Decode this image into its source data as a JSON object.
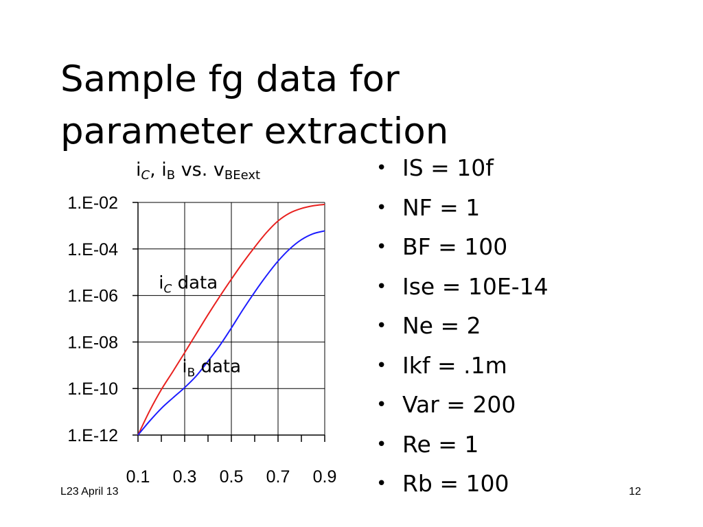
{
  "slide": {
    "title_line1": "Sample fg data for",
    "title_line2": "parameter extraction",
    "footer_left": "L23 April 13",
    "page_number": "12"
  },
  "bullets": [
    "IS = 10f",
    "NF = 1",
    "BF = 100",
    "Ise = 10E-14",
    "Ne = 2",
    "Ikf = .1m",
    "Var = 200",
    "Re = 1",
    "Rb = 100"
  ],
  "chart_data": {
    "type": "line",
    "title_parts": {
      "i": "i",
      "c_sub": "C",
      "sep": ", i",
      "b_sub": "B",
      "vs": " vs. v",
      "v_sub": "BEext"
    },
    "y_scale": "log",
    "ylim": [
      1e-12,
      0.01
    ],
    "xlim": [
      0.1,
      0.9
    ],
    "y_tick_labels": [
      "1.E-02",
      "1.E-04",
      "1.E-06",
      "1.E-08",
      "1.E-10",
      "1.E-12"
    ],
    "y_tick_values": [
      0.01,
      0.0001,
      1e-06,
      1e-08,
      1e-10,
      1e-12
    ],
    "x_tick_labels": [
      "0.1",
      "0.3",
      "0.5",
      "0.7",
      "0.9"
    ],
    "x_tick_values": [
      0.1,
      0.3,
      0.5,
      0.7,
      0.9
    ],
    "grid": true,
    "series": [
      {
        "color": "#e8201e",
        "x": [
          0.1,
          0.15,
          0.2,
          0.25,
          0.3,
          0.35,
          0.4,
          0.45,
          0.5,
          0.55,
          0.6,
          0.65,
          0.7,
          0.75,
          0.8,
          0.85,
          0.9
        ],
        "y": [
          1e-12,
          1.1e-11,
          9e-11,
          5.5e-10,
          3.5e-09,
          2.3e-08,
          1.5e-07,
          9e-07,
          5e-06,
          2.6e-05,
          0.00012,
          0.0005,
          0.0016,
          0.0035,
          0.0055,
          0.0072,
          0.0082
        ]
      },
      {
        "color": "#1c1cff",
        "x": [
          0.1,
          0.15,
          0.2,
          0.25,
          0.3,
          0.35,
          0.4,
          0.45,
          0.5,
          0.55,
          0.6,
          0.65,
          0.7,
          0.75,
          0.8,
          0.85,
          0.9
        ],
        "y": [
          1e-12,
          4e-12,
          1.4e-11,
          4e-11,
          1.1e-10,
          3.5e-10,
          1.5e-09,
          7e-09,
          4e-08,
          2.5e-07,
          1.4e-06,
          7e-06,
          3e-05,
          0.0001,
          0.00025,
          0.00045,
          0.0006
        ]
      }
    ],
    "annotations": [
      {
        "text": "i",
        "sub": "C",
        "rest": " data",
        "x": 0.33,
        "y": 2e-06
      },
      {
        "text": "i",
        "sub": "B",
        "rest": " data",
        "x": 0.43,
        "y": 5e-10
      }
    ]
  }
}
